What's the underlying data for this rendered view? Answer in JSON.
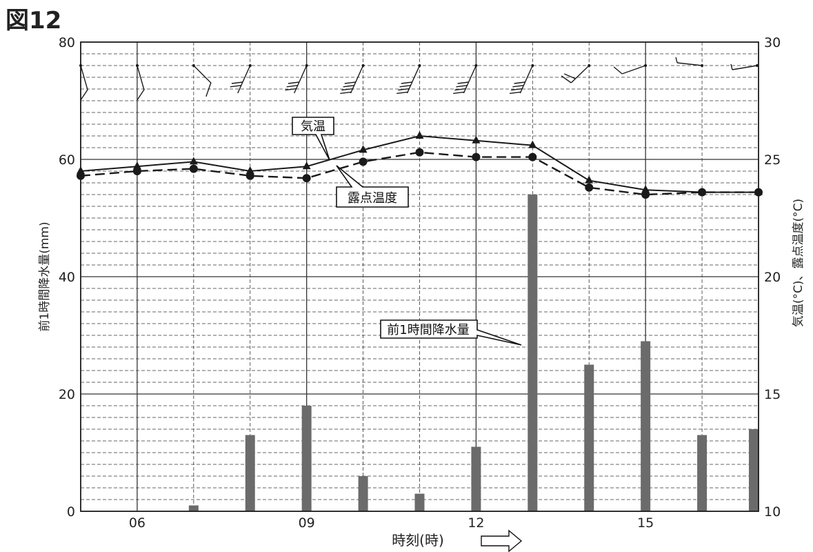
{
  "figure_title": "図12",
  "chart_data": {
    "type": "bar+line",
    "xlabel": "時刻(時)",
    "x_ticks": [
      "06",
      "09",
      "12",
      "15"
    ],
    "x_tick_hours": [
      6,
      9,
      12,
      15
    ],
    "xlim": [
      5,
      17
    ],
    "ylabel_left": "前1時間降水量(mm)",
    "ylim_left": [
      0,
      80
    ],
    "yticks_left": [
      0,
      20,
      40,
      60,
      80
    ],
    "ylabel_right": "気温(°C)、露点温度(°C)",
    "ylim_right": [
      10,
      30
    ],
    "yticks_right": [
      10,
      15,
      20,
      25,
      30
    ],
    "hours": [
      5,
      6,
      7,
      8,
      9,
      10,
      11,
      12,
      13,
      14,
      15,
      16,
      17
    ],
    "series": [
      {
        "name": "前1時間降水量",
        "kind": "bar",
        "axis": "left",
        "values": [
          0,
          0,
          1,
          13,
          18,
          6,
          3,
          11,
          54,
          25,
          29,
          13,
          14
        ]
      },
      {
        "name": "気温",
        "kind": "line",
        "axis": "right",
        "marker": "triangle",
        "values": [
          24.5,
          24.7,
          24.9,
          24.5,
          24.7,
          25.4,
          26.0,
          25.8,
          25.6,
          24.1,
          23.7,
          23.6,
          23.6
        ]
      },
      {
        "name": "露点温度",
        "kind": "line",
        "axis": "right",
        "marker": "circle",
        "dashed": true,
        "values": [
          24.3,
          24.5,
          24.6,
          24.3,
          24.2,
          24.9,
          25.3,
          25.1,
          25.1,
          23.8,
          23.5,
          23.6,
          23.6
        ]
      }
    ],
    "wind_barbs_shown": true,
    "grid": true
  },
  "callouts": {
    "temp_label": "気温",
    "dew_label": "露点温度",
    "precip_label": "前1時間降水量"
  },
  "colors": {
    "bar": "#6b6b6b",
    "line": "#1a1a1a",
    "grid": "#333333"
  }
}
